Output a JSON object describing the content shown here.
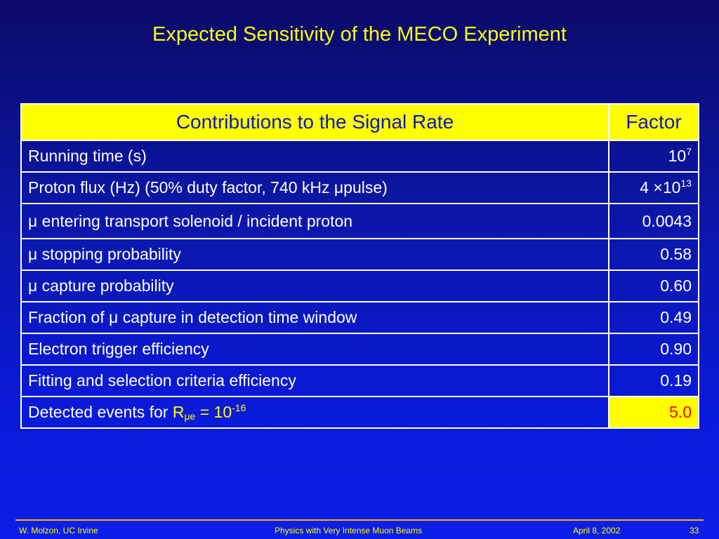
{
  "title": "Expected Sensitivity of the MECO Experiment",
  "table": {
    "header": {
      "label": "Contributions to the Signal Rate",
      "factor": "Factor"
    },
    "rows": [
      {
        "label": "Running time (s)",
        "value_base": "10",
        "value_exp": "7"
      },
      {
        "label_pre": "Proton flux (Hz) (50% duty factor, 740 kHz ",
        "label_mu": "μ",
        "label_post": "pulse)",
        "value_pre": "4 ",
        "value_times": "×",
        "value_base": "10",
        "value_exp": "13"
      },
      {
        "mu": "μ",
        "label": " entering transport solenoid / incident proton",
        "value": "0.0043"
      },
      {
        "mu": "μ",
        "label": " stopping probability",
        "value": "0.58"
      },
      {
        "mu": "μ",
        "label": " capture probability",
        "value": "0.60"
      },
      {
        "label_pre": "Fraction of ",
        "label_mu": "μ",
        "label_post": " capture in detection time window",
        "value": "0.49"
      },
      {
        "label": "Electron trigger efficiency",
        "value": "0.90"
      },
      {
        "label": "Fitting and selection criteria efficiency",
        "value": "0.19"
      },
      {
        "label_pre": "Detected events for ",
        "r": "R",
        "sub": "μe",
        "eq": " = 10",
        "exp": "-16",
        "value": "5.0"
      }
    ]
  },
  "footer": {
    "author": "W. Molzon, UC Irvine",
    "talk": "Physics with Very Intense Muon Beams",
    "date": "April 8, 2002",
    "page": "33"
  },
  "colors": {
    "title": "#ffff00",
    "header_bg": "#ffff00",
    "header_text": "#0b1ab0",
    "highlight_text": "#ff0000",
    "rule": "#ffb000"
  }
}
